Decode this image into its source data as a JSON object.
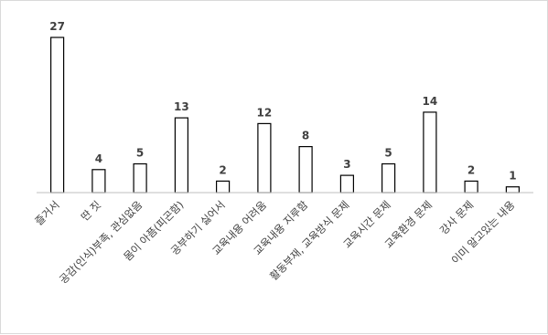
{
  "chart_data": {
    "type": "bar",
    "categories": [
      "즐거서",
      "딴 짓",
      "공감(인식)부족, 관심없음",
      "몸이 아픔(피곤함)",
      "공부하기 싫어서",
      "교육내용 어려움",
      "교육내용 지루함",
      "활동부재, 교육방식 문제",
      "교육시간 문제",
      "교육환경 문제",
      "강사 문제",
      "이미 알고있는 내용"
    ],
    "values": [
      27,
      4,
      5,
      13,
      2,
      12,
      8,
      3,
      5,
      14,
      2,
      1
    ],
    "ylim": [
      0,
      30
    ],
    "grid": false,
    "legend": "none",
    "colors": {
      "bar_fill": "#ffffff",
      "bar_stroke": "#000000",
      "label": "#404040",
      "axis": "#bfbfbf"
    }
  }
}
